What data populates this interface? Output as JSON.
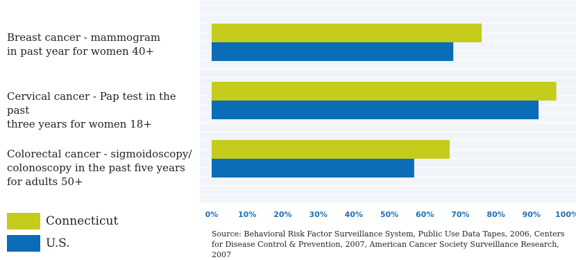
{
  "chart_data": {
    "type": "bar",
    "orientation": "horizontal",
    "categories": [
      "Breast cancer - mammogram\nin past year for women 40+",
      "Cervical cancer - Pap test in the past\nthree years for women 18+",
      "Colorectal cancer - sigmoidoscopy/\ncolonoscopy in the past five years\nfor adults 50+"
    ],
    "series": [
      {
        "name": "Connecticut",
        "color": "#c5cc1c",
        "values": [
          76,
          97,
          67
        ]
      },
      {
        "name": "U.S.",
        "color": "#0b6db7",
        "values": [
          68,
          92,
          57
        ]
      }
    ],
    "xlim": [
      0,
      100
    ],
    "x_ticks": [
      "0%",
      "10%",
      "20%",
      "30%",
      "40%",
      "50%",
      "60%",
      "70%",
      "80%",
      "90%",
      "100%"
    ],
    "grid": true,
    "legend_position": "bottom-left",
    "title": "",
    "xlabel": "",
    "ylabel": ""
  },
  "source_text": "Source: Behavioral Risk Factor Surveillance System, Public Use Data Tapes, 2006, Centers for Disease Control & Prevention, 2007, American Cancer Society Surveillance Research, 2007"
}
